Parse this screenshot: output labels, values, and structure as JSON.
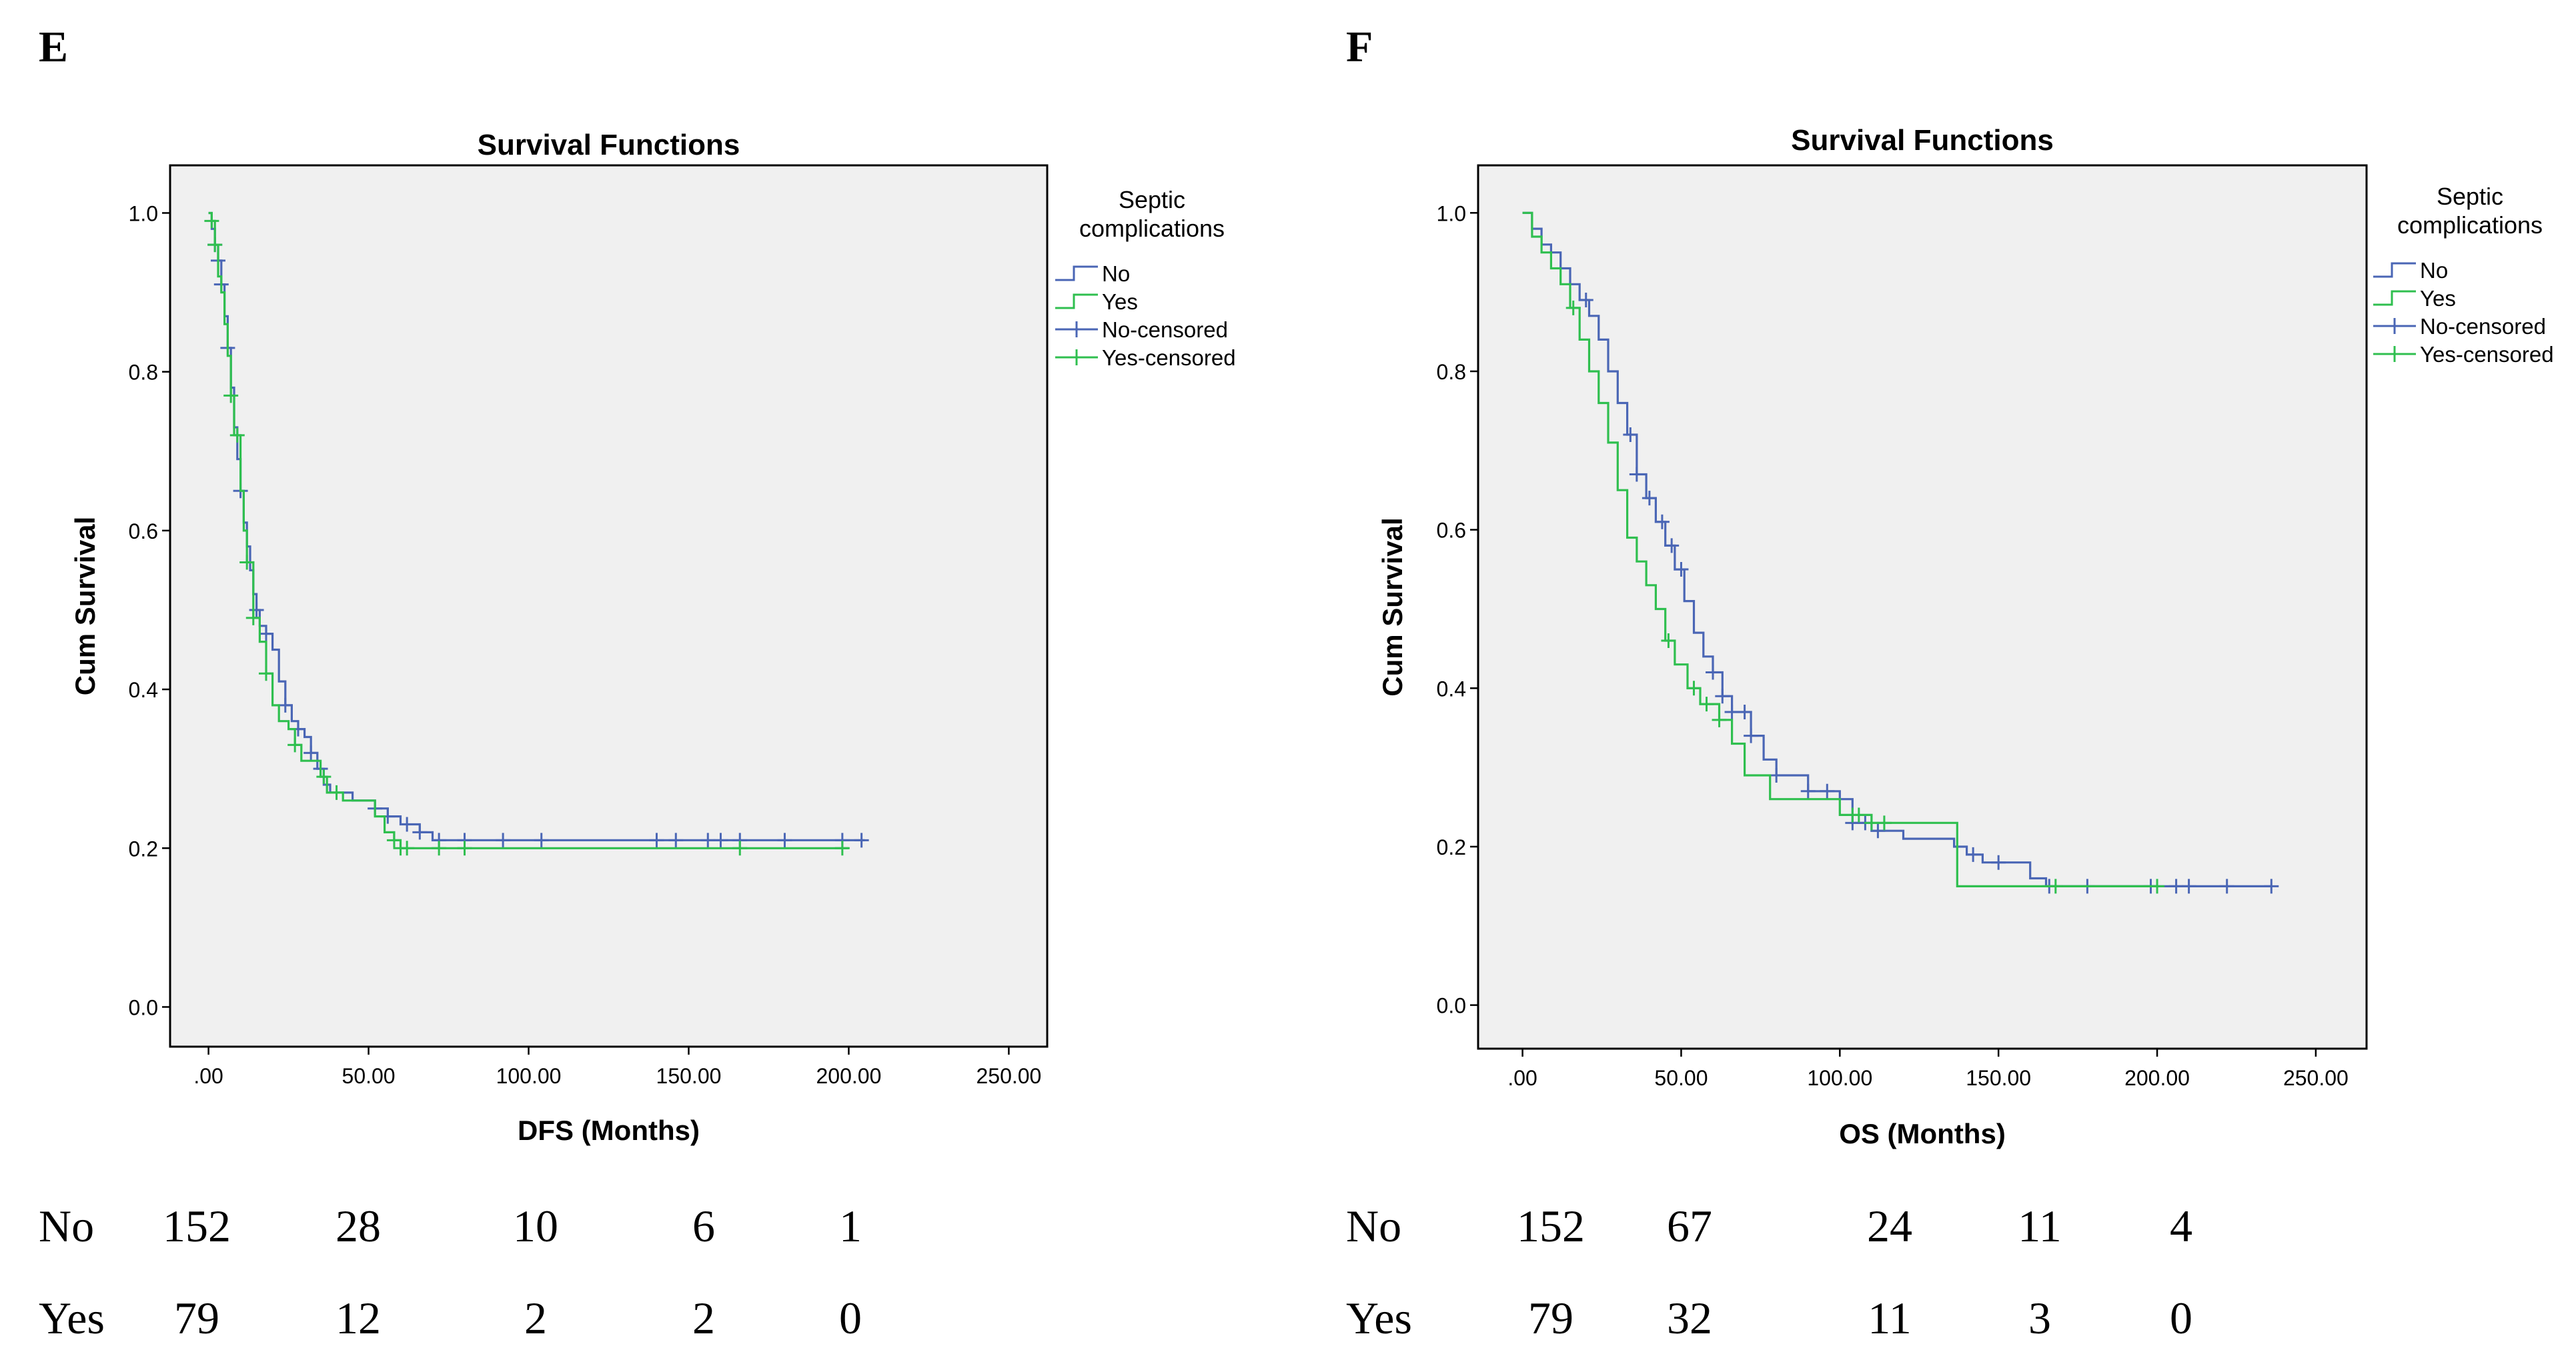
{
  "chart_data": [
    {
      "type": "line",
      "panel_label": "E",
      "title": "Survival Functions",
      "xlabel": "DFS (Months)",
      "ylabel": "Cum Survival",
      "xlim": [
        -12,
        262
      ],
      "ylim": [
        -0.05,
        1.06
      ],
      "x_ticks": [
        0,
        50,
        100,
        150,
        200,
        250
      ],
      "x_tick_labels": [
        ".00",
        "50.00",
        "100.00",
        "150.00",
        "200.00",
        "250.00"
      ],
      "y_ticks": [
        0.0,
        0.2,
        0.4,
        0.6,
        0.8,
        1.0
      ],
      "y_tick_labels": [
        "0.0",
        "0.2",
        "0.4",
        "0.6",
        "0.8",
        "1.0"
      ],
      "legend": {
        "title_lines": [
          "Septic",
          "complications"
        ],
        "entries": [
          "No",
          "Yes",
          "No-censored",
          "Yes-censored"
        ],
        "placement": "right"
      },
      "series": [
        {
          "name": "No",
          "color": "#4a66b5",
          "points": [
            [
              0,
              1.0
            ],
            [
              1,
              0.98
            ],
            [
              2,
              0.96
            ],
            [
              3,
              0.94
            ],
            [
              4,
              0.91
            ],
            [
              5,
              0.87
            ],
            [
              6,
              0.83
            ],
            [
              7,
              0.78
            ],
            [
              8,
              0.73
            ],
            [
              9,
              0.69
            ],
            [
              10,
              0.65
            ],
            [
              11,
              0.61
            ],
            [
              12,
              0.58
            ],
            [
              13,
              0.55
            ],
            [
              14,
              0.52
            ],
            [
              15,
              0.5
            ],
            [
              16,
              0.48
            ],
            [
              18,
              0.47
            ],
            [
              20,
              0.45
            ],
            [
              22,
              0.41
            ],
            [
              24,
              0.38
            ],
            [
              26,
              0.36
            ],
            [
              28,
              0.35
            ],
            [
              30,
              0.34
            ],
            [
              32,
              0.32
            ],
            [
              34,
              0.3
            ],
            [
              36,
              0.28
            ],
            [
              38,
              0.27
            ],
            [
              45,
              0.26
            ],
            [
              52,
              0.25
            ],
            [
              56,
              0.24
            ],
            [
              60,
              0.23
            ],
            [
              66,
              0.22
            ],
            [
              70,
              0.21
            ],
            [
              205,
              0.21
            ]
          ],
          "censored": [
            2,
            3,
            4,
            6,
            10,
            15,
            18,
            24,
            28,
            32,
            35,
            52,
            56,
            62,
            66,
            72,
            80,
            92,
            104,
            140,
            146,
            156,
            160,
            166,
            180,
            198,
            204
          ]
        },
        {
          "name": "Yes",
          "color": "#2fbf4f",
          "points": [
            [
              0,
              1.0
            ],
            [
              1,
              0.99
            ],
            [
              2,
              0.96
            ],
            [
              3,
              0.92
            ],
            [
              4,
              0.9
            ],
            [
              5,
              0.86
            ],
            [
              6,
              0.82
            ],
            [
              7,
              0.77
            ],
            [
              8,
              0.72
            ],
            [
              10,
              0.65
            ],
            [
              11,
              0.6
            ],
            [
              12,
              0.56
            ],
            [
              14,
              0.49
            ],
            [
              16,
              0.46
            ],
            [
              18,
              0.42
            ],
            [
              20,
              0.38
            ],
            [
              22,
              0.36
            ],
            [
              25,
              0.35
            ],
            [
              27,
              0.33
            ],
            [
              29,
              0.31
            ],
            [
              35,
              0.29
            ],
            [
              37,
              0.27
            ],
            [
              42,
              0.26
            ],
            [
              52,
              0.24
            ],
            [
              55,
              0.22
            ],
            [
              58,
              0.21
            ],
            [
              60,
              0.2
            ],
            [
              200,
              0.2
            ]
          ],
          "censored": [
            1,
            2,
            7,
            9,
            12,
            14,
            18,
            27,
            36,
            40,
            58,
            60,
            62,
            72,
            80,
            166,
            198
          ]
        }
      ],
      "at_risk": {
        "rows": [
          {
            "label": "No",
            "values": [
              "152",
              "28",
              "10",
              "6",
              "1"
            ]
          },
          {
            "label": "Yes",
            "values": [
              "79",
              "12",
              "2",
              "2",
              "0"
            ]
          }
        ]
      }
    },
    {
      "type": "line",
      "panel_label": "F",
      "title": "Survival Functions",
      "xlabel": "OS (Months)",
      "ylabel": "Cum Survival",
      "xlim": [
        -14,
        266
      ],
      "ylim": [
        -0.055,
        1.06
      ],
      "x_ticks": [
        0,
        50,
        100,
        150,
        200,
        250
      ],
      "x_tick_labels": [
        ".00",
        "50.00",
        "100.00",
        "150.00",
        "200.00",
        "250.00"
      ],
      "y_ticks": [
        0.0,
        0.2,
        0.4,
        0.6,
        0.8,
        1.0
      ],
      "y_tick_labels": [
        "0.0",
        "0.2",
        "0.4",
        "0.6",
        "0.8",
        "1.0"
      ],
      "legend": {
        "title_lines": [
          "Septic",
          "complications"
        ],
        "entries": [
          "No",
          "Yes",
          "No-censored",
          "Yes-censored"
        ],
        "placement": "right"
      },
      "series": [
        {
          "name": "No",
          "color": "#4a66b5",
          "points": [
            [
              0,
              1.0
            ],
            [
              3,
              0.98
            ],
            [
              6,
              0.96
            ],
            [
              9,
              0.95
            ],
            [
              12,
              0.93
            ],
            [
              15,
              0.91
            ],
            [
              18,
              0.89
            ],
            [
              21,
              0.87
            ],
            [
              24,
              0.84
            ],
            [
              27,
              0.8
            ],
            [
              30,
              0.76
            ],
            [
              33,
              0.72
            ],
            [
              36,
              0.67
            ],
            [
              39,
              0.64
            ],
            [
              42,
              0.61
            ],
            [
              45,
              0.58
            ],
            [
              48,
              0.55
            ],
            [
              51,
              0.51
            ],
            [
              54,
              0.47
            ],
            [
              57,
              0.44
            ],
            [
              60,
              0.42
            ],
            [
              63,
              0.39
            ],
            [
              66,
              0.37
            ],
            [
              72,
              0.34
            ],
            [
              76,
              0.31
            ],
            [
              80,
              0.29
            ],
            [
              90,
              0.27
            ],
            [
              100,
              0.26
            ],
            [
              104,
              0.23
            ],
            [
              110,
              0.22
            ],
            [
              120,
              0.21
            ],
            [
              136,
              0.2
            ],
            [
              140,
              0.19
            ],
            [
              145,
              0.18
            ],
            [
              160,
              0.16
            ],
            [
              165,
              0.15
            ],
            [
              236,
              0.15
            ]
          ],
          "censored": [
            20,
            34,
            36,
            40,
            44,
            47,
            50,
            60,
            63,
            66,
            70,
            72,
            80,
            90,
            96,
            104,
            108,
            112,
            142,
            150,
            166,
            178,
            198,
            206,
            210,
            222,
            236
          ]
        },
        {
          "name": "Yes",
          "color": "#2fbf4f",
          "points": [
            [
              0,
              1.0
            ],
            [
              3,
              0.97
            ],
            [
              6,
              0.95
            ],
            [
              9,
              0.93
            ],
            [
              12,
              0.91
            ],
            [
              15,
              0.88
            ],
            [
              18,
              0.84
            ],
            [
              21,
              0.8
            ],
            [
              24,
              0.76
            ],
            [
              27,
              0.71
            ],
            [
              30,
              0.65
            ],
            [
              33,
              0.59
            ],
            [
              36,
              0.56
            ],
            [
              39,
              0.53
            ],
            [
              42,
              0.5
            ],
            [
              45,
              0.46
            ],
            [
              48,
              0.43
            ],
            [
              52,
              0.4
            ],
            [
              56,
              0.38
            ],
            [
              62,
              0.36
            ],
            [
              66,
              0.33
            ],
            [
              70,
              0.29
            ],
            [
              78,
              0.26
            ],
            [
              100,
              0.24
            ],
            [
              110,
              0.23
            ],
            [
              136,
              0.23
            ],
            [
              137,
              0.15
            ],
            [
              200,
              0.15
            ]
          ],
          "censored": [
            16,
            46,
            54,
            58,
            62,
            104,
            106,
            110,
            114,
            168,
            200
          ]
        }
      ],
      "at_risk": {
        "rows": [
          {
            "label": "No",
            "values": [
              "152",
              "67",
              "24",
              "11",
              "4"
            ]
          },
          {
            "label": "Yes",
            "values": [
              "79",
              "32",
              "11",
              "3",
              "0"
            ]
          }
        ]
      }
    }
  ]
}
